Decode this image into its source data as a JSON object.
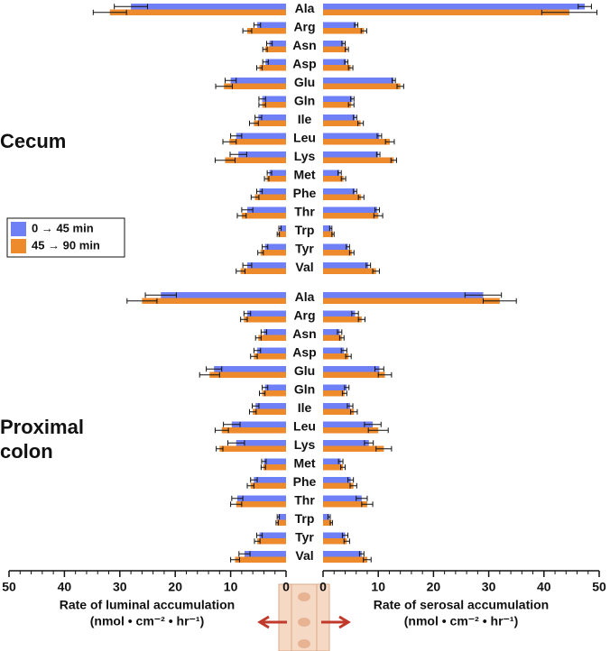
{
  "chart_data": {
    "type": "bar",
    "categories": [
      "Ala",
      "Arg",
      "Asn",
      "Asp",
      "Glu",
      "Gln",
      "Ile",
      "Leu",
      "Lys",
      "Met",
      "Phe",
      "Thr",
      "Trp",
      "Tyr",
      "Val"
    ],
    "series": [
      {
        "name": "0 → 45 min",
        "color": "#6f7ff5"
      },
      {
        "name": "45 → 90 min",
        "color": "#ec8a2c"
      }
    ],
    "xlabels": {
      "left": "Rate of luminal accumulation",
      "right": "Rate of serosal accumulation",
      "units": "(nmol • cm⁻² • hr⁻¹)"
    },
    "xlim": [
      0,
      50
    ],
    "xticks": [
      0,
      10,
      20,
      30,
      40,
      50
    ],
    "minor_xticks": [
      2,
      4,
      6,
      8,
      12,
      14,
      16,
      18,
      22,
      24,
      26,
      28,
      32,
      34,
      36,
      38,
      42,
      44,
      46,
      48
    ],
    "panels": [
      {
        "label": "Cecum",
        "luminal": [
          {
            "values": [
              28,
              5.2,
              3.0,
              3.7,
              10.0,
              4.3,
              5.0,
              9.0,
              8.6,
              3.0,
              4.8,
              7.0,
              1.1,
              3.8,
              7.0
            ],
            "errors": [
              3,
              0.6,
              0.5,
              0.5,
              1.0,
              0.6,
              0.6,
              1.0,
              1.5,
              0.4,
              0.5,
              1.0,
              0.2,
              0.5,
              0.8
            ]
          },
          {
            "values": [
              31.8,
              7.0,
              3.8,
              4.8,
              11.2,
              4.3,
              5.8,
              10.2,
              11.0,
              3.5,
              5.6,
              8.0,
              1.4,
              4.6,
              8.2
            ],
            "errors": [
              3,
              0.8,
              0.4,
              0.5,
              1.5,
              0.6,
              0.8,
              1.2,
              1.8,
              0.4,
              0.7,
              0.8,
              0.2,
              0.5,
              0.8
            ]
          }
        ],
        "serosal": [
          {
            "values": [
              47.4,
              6.0,
              3.7,
              4.2,
              12.8,
              5.3,
              5.8,
              10.2,
              10.0,
              3.0,
              5.8,
              9.8,
              1.4,
              4.5,
              8.2
            ],
            "errors": [
              1.2,
              0.3,
              0.3,
              0.3,
              0.3,
              0.3,
              0.3,
              0.4,
              0.3,
              0.3,
              0.3,
              0.4,
              0.2,
              0.3,
              0.4
            ]
          },
          {
            "values": [
              44.6,
              7.4,
              4.3,
              5.0,
              14.0,
              5.1,
              6.8,
              12.1,
              12.8,
              3.7,
              6.9,
              10.0,
              1.8,
              5.2,
              9.6
            ],
            "errors": [
              5,
              0.5,
              0.3,
              0.4,
              0.6,
              0.5,
              0.5,
              0.8,
              0.5,
              0.4,
              0.5,
              0.8,
              0.2,
              0.4,
              0.6
            ]
          }
        ]
      },
      {
        "label": "Proximal colon",
        "luminal": [
          {
            "values": [
              22.6,
              7.0,
              4.0,
              5.2,
              13.0,
              3.8,
              5.5,
              9.8,
              9.0,
              4.0,
              5.8,
              8.8,
              1.4,
              4.8,
              7.5
            ],
            "errors": [
              2.8,
              0.6,
              0.5,
              0.6,
              1.4,
              0.5,
              0.6,
              1.5,
              1.5,
              0.4,
              0.6,
              1.0,
              0.2,
              0.5,
              1.0
            ]
          },
          {
            "values": [
              26,
              7.6,
              5.0,
              5.8,
              13.8,
              4.3,
              6.0,
              11.6,
              12.0,
              4.1,
              6.4,
              9.0,
              1.6,
              5.2,
              9.2
            ],
            "errors": [
              2.7,
              0.6,
              0.5,
              0.6,
              1.8,
              0.5,
              0.6,
              1.2,
              0.6,
              0.4,
              0.6,
              1.0,
              0.2,
              0.5,
              0.8
            ]
          }
        ],
        "serosal": [
          {
            "values": [
              29,
              5.8,
              3.0,
              3.8,
              10.2,
              4.3,
              4.9,
              9.0,
              8.3,
              3.2,
              5.0,
              7.0,
              1.1,
              4.0,
              7.0
            ],
            "errors": [
              3.3,
              0.6,
              0.4,
              0.5,
              0.8,
              0.4,
              0.5,
              1.5,
              0.8,
              0.4,
              0.5,
              1.0,
              0.2,
              0.5,
              0.4
            ]
          },
          {
            "values": [
              32,
              7.0,
              3.4,
              4.6,
              11.2,
              3.9,
              5.6,
              10.0,
              11.0,
              3.6,
              5.5,
              8.0,
              1.5,
              4.3,
              8.0
            ],
            "errors": [
              3,
              0.6,
              0.4,
              0.5,
              1.2,
              0.4,
              0.6,
              1.8,
              1.4,
              0.4,
              0.6,
              1.0,
              0.2,
              0.5,
              0.7
            ]
          }
        ]
      }
    ]
  }
}
